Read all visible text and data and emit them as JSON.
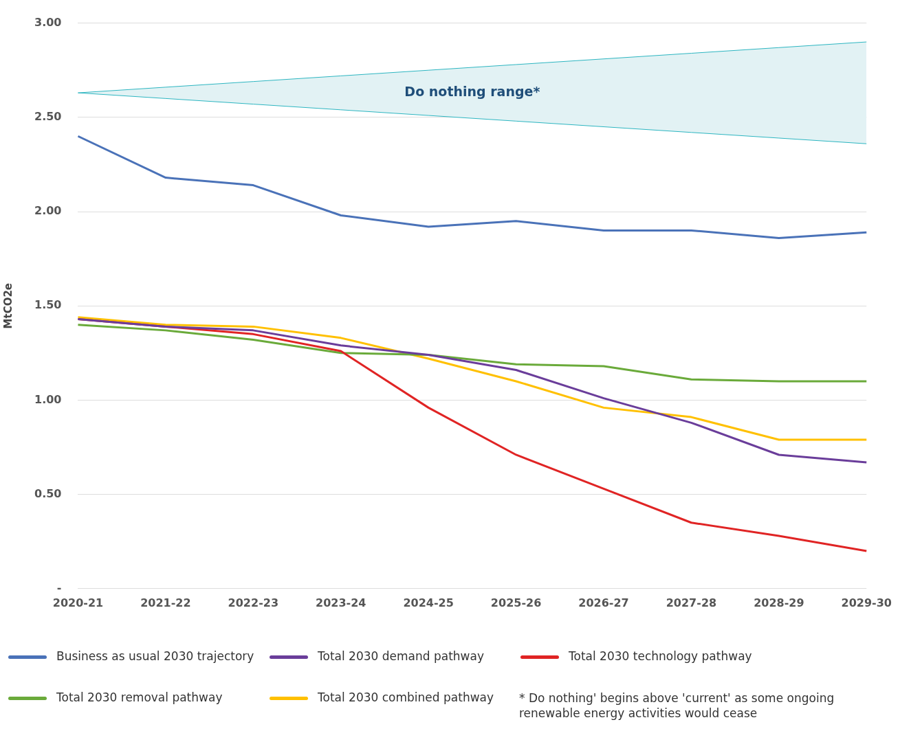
{
  "chart_data": {
    "type": "line",
    "ylabel": "MtCO2e",
    "categories": [
      "2020-21",
      "2021-22",
      "2022-23",
      "2023-24",
      "2024-25",
      "2025-26",
      "2026-27",
      "2027-28",
      "2028-29",
      "2029-30"
    ],
    "series": [
      {
        "type": "line",
        "color": "#2cb5c0",
        "values": [
          2.63,
          2.6,
          2.57,
          2.54,
          2.51,
          2.48,
          2.45,
          2.42,
          2.39,
          2.36
        ]
      },
      {
        "name": "Do nothing range*",
        "type": "area",
        "color": "#2cb5c0",
        "values": [
          2.63,
          2.66,
          2.69,
          2.72,
          2.75,
          2.78,
          2.81,
          2.84,
          2.87,
          2.9
        ]
      },
      {
        "name": "Business as usual 2030 trajectory",
        "color": "#4a72b8",
        "values": [
          2.4,
          2.18,
          2.14,
          1.98,
          1.92,
          1.95,
          1.9,
          1.9,
          1.86,
          1.89
        ]
      },
      {
        "name": "Total 2030 demand pathway",
        "color": "#6a3d9a",
        "values": [
          1.43,
          1.39,
          1.37,
          1.29,
          1.24,
          1.16,
          1.01,
          0.88,
          0.71,
          0.67
        ]
      },
      {
        "name": "Total 2030 technology pathway",
        "color": "#e02424",
        "values": [
          1.43,
          1.39,
          1.35,
          1.26,
          0.96,
          0.71,
          0.53,
          0.35,
          0.28,
          0.2
        ]
      },
      {
        "name": "Total 2030 removal pathway",
        "color": "#6aaa3a",
        "values": [
          1.4,
          1.37,
          1.32,
          1.25,
          1.24,
          1.19,
          1.18,
          1.11,
          1.1,
          1.1
        ]
      },
      {
        "name": "Total 2030 combined pathway",
        "color": "#ffc000",
        "values": [
          1.44,
          1.4,
          1.39,
          1.33,
          1.22,
          1.1,
          0.96,
          0.91,
          0.79,
          0.79
        ]
      }
    ],
    "ylim": [
      0,
      3
    ],
    "yticks": [
      {
        "value": 0,
        "label": "-"
      },
      {
        "value": 0.5,
        "label": "0.50"
      },
      {
        "value": 1,
        "label": "1.00"
      },
      {
        "value": 1.5,
        "label": "1.50"
      },
      {
        "value": 2,
        "label": "2.00"
      },
      {
        "value": 2.5,
        "label": "2.50"
      },
      {
        "value": 3,
        "label": "3.00"
      }
    ],
    "grid": "y",
    "legend": "bottom",
    "marker": "none",
    "line_style": "solid",
    "annotations": [
      "* Do nothing' begins above 'current' as some ongoing renewable energy activities would cease"
    ]
  }
}
